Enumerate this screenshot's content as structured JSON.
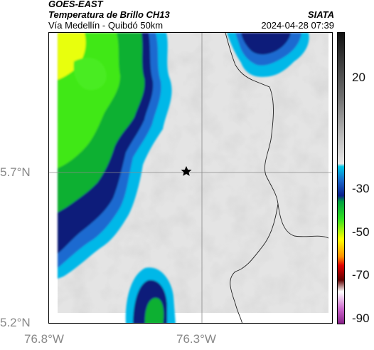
{
  "header": {
    "satellite": "GOES-EAST",
    "product": "Temperatura de Brillo CH13",
    "region": "Vía Medellín - Quibdó 50km",
    "source": "SIATA",
    "datetime": "2024-04-28 07:39"
  },
  "axes": {
    "lat_ticks": [
      "5.7°N",
      "5.2°N"
    ],
    "lon_ticks": [
      "76.8°W",
      "76.3°W"
    ]
  },
  "colorbar": {
    "ticks": [
      "20",
      "-30",
      "-50",
      "-70",
      "-90"
    ],
    "colors": [
      "#111111",
      "#6e6e6e",
      "#bdbdbd",
      "#e8e8e8",
      "#00c8e8",
      "#1a64c8",
      "#0a1e8c",
      "#00a040",
      "#30e020",
      "#ffff00",
      "#ff9000",
      "#e00000",
      "#600000",
      "#ffffff",
      "#cc66cc",
      "#882288"
    ]
  },
  "map": {
    "marker": "star-marker",
    "colors": {
      "gray_light": "#e6e6e6",
      "gray_mid": "#cfcfcf",
      "cyan": "#00c0e8",
      "blue": "#1060c8",
      "navy": "#0a1a78",
      "green": "#10b030",
      "lime": "#40e818",
      "yellow": "#f0ff00"
    }
  }
}
